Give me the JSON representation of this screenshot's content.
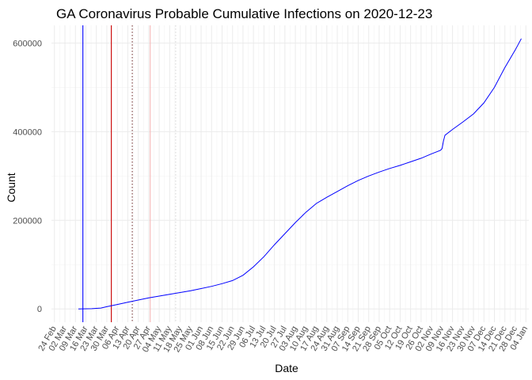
{
  "chart_data": {
    "type": "line",
    "title": "GA Coronavirus Probable Cumulative Infections on 2020-12-23",
    "xlabel": "Date",
    "ylabel": "Count",
    "xlim": [
      "2020-02-22",
      "2021-01-06"
    ],
    "ylim": [
      -30000,
      640000
    ],
    "grid": true,
    "x_ticks": [
      "2020-02-24",
      "2020-03-02",
      "2020-03-09",
      "2020-03-16",
      "2020-03-23",
      "2020-03-30",
      "2020-04-06",
      "2020-04-13",
      "2020-04-20",
      "2020-04-27",
      "2020-05-04",
      "2020-05-11",
      "2020-05-18",
      "2020-05-25",
      "2020-06-01",
      "2020-06-08",
      "2020-06-15",
      "2020-06-22",
      "2020-06-29",
      "2020-07-06",
      "2020-07-13",
      "2020-07-20",
      "2020-07-27",
      "2020-08-03",
      "2020-08-10",
      "2020-08-17",
      "2020-08-24",
      "2020-08-31",
      "2020-09-07",
      "2020-09-14",
      "2020-09-21",
      "2020-09-28",
      "2020-10-05",
      "2020-10-12",
      "2020-10-19",
      "2020-10-26",
      "2020-11-02",
      "2020-11-09",
      "2020-11-16",
      "2020-11-23",
      "2020-11-30",
      "2020-12-07",
      "2020-12-14",
      "2020-12-21",
      "2020-12-28",
      "2021-01-04"
    ],
    "x_tick_labels": [
      "24 Feb",
      "02 Mar",
      "09 Mar",
      "16 Mar",
      "23 Mar",
      "30 Mar",
      "06 Apr",
      "13 Apr",
      "20 Apr",
      "27 Apr",
      "04 May",
      "11 May",
      "18 May",
      "25 May",
      "01 Jun",
      "08 Jun",
      "15 Jun",
      "22 Jun",
      "29 Jun",
      "06 Jul",
      "13 Jul",
      "20 Jul",
      "27 Jul",
      "03 Aug",
      "10 Aug",
      "17 Aug",
      "24 Aug",
      "31 Aug",
      "07 Sep",
      "14 Sep",
      "21 Sep",
      "28 Sep",
      "05 Oct",
      "12 Oct",
      "19 Oct",
      "26 Oct",
      "02 Nov",
      "09 Nov",
      "16 Nov",
      "23 Nov",
      "30 Nov",
      "07 Dec",
      "14 Dec",
      "21 Dec",
      "28 Dec",
      "04 Jan"
    ],
    "y_ticks": [
      0,
      200000,
      400000,
      600000
    ],
    "y_tick_labels": [
      "0",
      "200000",
      "400000",
      "600000"
    ],
    "series": [
      {
        "name": "Probable cumulative infections",
        "color": "#0000ff",
        "points": [
          [
            "2020-03-11",
            0
          ],
          [
            "2020-03-20",
            500
          ],
          [
            "2020-03-26",
            2000
          ],
          [
            "2020-03-30",
            5000
          ],
          [
            "2020-04-06",
            10000
          ],
          [
            "2020-04-13",
            15000
          ],
          [
            "2020-04-20",
            20000
          ],
          [
            "2020-04-27",
            25000
          ],
          [
            "2020-05-04",
            29000
          ],
          [
            "2020-05-11",
            33000
          ],
          [
            "2020-05-18",
            37000
          ],
          [
            "2020-05-25",
            41000
          ],
          [
            "2020-06-01",
            46000
          ],
          [
            "2020-06-08",
            51000
          ],
          [
            "2020-06-15",
            57000
          ],
          [
            "2020-06-22",
            64000
          ],
          [
            "2020-06-29",
            76000
          ],
          [
            "2020-07-06",
            95000
          ],
          [
            "2020-07-13",
            118000
          ],
          [
            "2020-07-20",
            145000
          ],
          [
            "2020-07-27",
            170000
          ],
          [
            "2020-08-03",
            195000
          ],
          [
            "2020-08-10",
            218000
          ],
          [
            "2020-08-17",
            238000
          ],
          [
            "2020-08-24",
            252000
          ],
          [
            "2020-08-31",
            265000
          ],
          [
            "2020-09-07",
            278000
          ],
          [
            "2020-09-14",
            290000
          ],
          [
            "2020-09-21",
            300000
          ],
          [
            "2020-09-28",
            309000
          ],
          [
            "2020-10-05",
            317000
          ],
          [
            "2020-10-12",
            324000
          ],
          [
            "2020-10-19",
            332000
          ],
          [
            "2020-10-26",
            340000
          ],
          [
            "2020-11-02",
            350000
          ],
          [
            "2020-11-08",
            358000
          ],
          [
            "2020-11-09",
            362000
          ],
          [
            "2020-11-10",
            380000
          ],
          [
            "2020-11-11",
            392000
          ],
          [
            "2020-11-16",
            405000
          ],
          [
            "2020-11-23",
            422000
          ],
          [
            "2020-11-30",
            440000
          ],
          [
            "2020-12-07",
            465000
          ],
          [
            "2020-12-14",
            500000
          ],
          [
            "2020-12-21",
            545000
          ],
          [
            "2020-12-28",
            585000
          ],
          [
            "2021-01-01",
            610000
          ]
        ]
      }
    ],
    "reference_lines": [
      {
        "date": "2020-03-14",
        "color": "#0000ff",
        "style": "solid"
      },
      {
        "date": "2020-04-02",
        "color": "#cc0000",
        "style": "solid"
      },
      {
        "date": "2020-04-16",
        "color": "#7a3b3b",
        "style": "dotted"
      },
      {
        "date": "2020-04-28",
        "color": "#f5b7b7",
        "style": "solid"
      },
      {
        "date": "2020-05-15",
        "color": "#d9d9d9",
        "style": "dotted"
      }
    ]
  }
}
